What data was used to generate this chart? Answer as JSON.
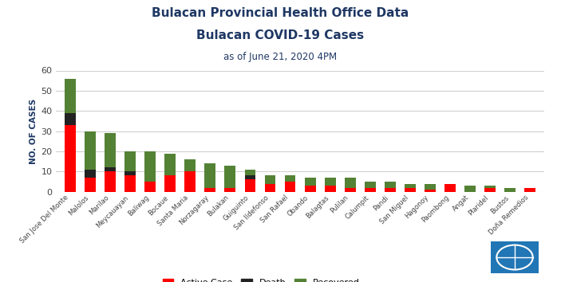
{
  "title_line1": "Bulacan Provincial Health Office Data",
  "title_line2": "Bulacan COVID-19 Cases",
  "subtitle": "as of June 21, 2020 4PM",
  "ylabel": "NO. OF CASES",
  "categories": [
    "San Jose Del Monte",
    "Malolos",
    "Marilao",
    "Meycauayan",
    "Baliwag",
    "Bocaue",
    "Santa Maria",
    "Norzagaray",
    "Bulakan",
    "Guiguinto",
    "San Ildefonso",
    "San Rafael",
    "Obando",
    "Balagtas",
    "Pulilan",
    "Calumpit",
    "Pandi",
    "San Miguel",
    "Hagonoy",
    "Paombong",
    "Angat",
    "Plaridel",
    "Bustos",
    "Doña Remedios"
  ],
  "active": [
    33,
    7,
    10,
    8,
    5,
    8,
    10,
    2,
    2,
    6,
    4,
    5,
    3,
    3,
    2,
    2,
    2,
    2,
    1,
    4,
    0,
    2,
    0,
    2
  ],
  "death": [
    6,
    4,
    2,
    2,
    0,
    0,
    0,
    0,
    0,
    2,
    0,
    0,
    0,
    0,
    0,
    0,
    0,
    0,
    0,
    0,
    0,
    0,
    0,
    0
  ],
  "recovered": [
    17,
    19,
    17,
    10,
    15,
    11,
    6,
    12,
    11,
    3,
    4,
    3,
    4,
    4,
    5,
    3,
    3,
    2,
    3,
    0,
    3,
    1,
    2,
    0
  ],
  "color_active": "#FF0000",
  "color_death": "#222222",
  "color_recovered": "#548235",
  "ylim": [
    0,
    60
  ],
  "yticks": [
    0,
    10,
    20,
    30,
    40,
    50,
    60
  ],
  "background_color": "#ffffff",
  "grid_color": "#d0d0d0",
  "title_color": "#1f3864",
  "bar_width": 0.55
}
